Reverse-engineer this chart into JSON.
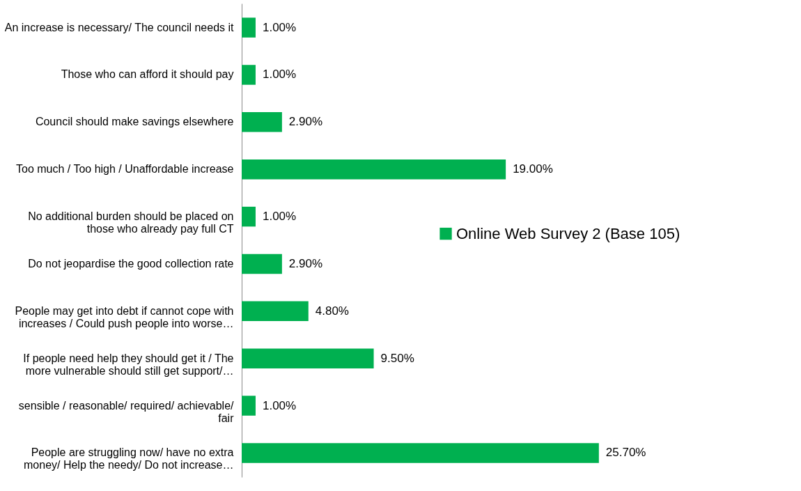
{
  "chart_data": {
    "type": "bar",
    "orientation": "horizontal",
    "categories": [
      "An increase is necessary/ The council needs it",
      "Those who can afford it should pay",
      "Council should make savings elsewhere",
      "Too much / Too high / Unaffordable increase",
      "No additional burden should be placed on\nthose who already pay full CT",
      "Do not jeopardise the good collection rate",
      "People may get into debt if cannot cope with\nincreases / Could push people into worse…",
      "If people need help they should get it / The\nmore vulnerable should still get support/…",
      "sensible / reasonable/ required/ achievable/\nfair",
      "People are struggling now/ have no extra\nmoney/ Help the needy/ Do not increase…"
    ],
    "series": [
      {
        "name": "Online Web Survey 2 (Base 105)",
        "color": "#00b050",
        "values": [
          1.0,
          1.0,
          2.9,
          19.0,
          1.0,
          2.9,
          4.8,
          9.5,
          1.0,
          25.7
        ],
        "value_labels": [
          "1.00%",
          "1.00%",
          "2.90%",
          "19.00%",
          "1.00%",
          "2.90%",
          "4.80%",
          "9.50%",
          "1.00%",
          "25.70%"
        ]
      }
    ],
    "legend": "right",
    "grid": false
  }
}
